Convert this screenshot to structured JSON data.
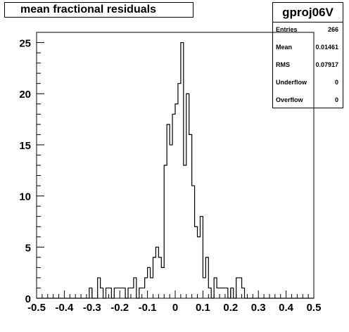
{
  "chart_data": {
    "type": "bar",
    "title": "mean fractional residuals",
    "xlim": [
      -0.5,
      0.5
    ],
    "ylim": [
      0,
      26
    ],
    "bin_width": 0.01,
    "x_ticks": [
      "-0.5",
      "-0.4",
      "-0.3",
      "-0.2",
      "-0.1",
      "0",
      "0.1",
      "0.2",
      "0.3",
      "0.4",
      "0.5"
    ],
    "x_tick_values": [
      -0.5,
      -0.4,
      -0.3,
      -0.2,
      -0.1,
      0,
      0.1,
      0.2,
      0.3,
      0.4,
      0.5
    ],
    "y_ticks": [
      "0",
      "5",
      "10",
      "15",
      "20",
      "25"
    ],
    "y_tick_values": [
      0,
      5,
      10,
      15,
      20,
      25
    ],
    "bins": [
      [
        -0.31,
        1
      ],
      [
        -0.28,
        2
      ],
      [
        -0.27,
        1
      ],
      [
        -0.25,
        1
      ],
      [
        -0.24,
        1
      ],
      [
        -0.22,
        1
      ],
      [
        -0.21,
        1
      ],
      [
        -0.2,
        1
      ],
      [
        -0.19,
        1
      ],
      [
        -0.17,
        1
      ],
      [
        -0.16,
        1
      ],
      [
        -0.15,
        2
      ],
      [
        -0.13,
        1
      ],
      [
        -0.12,
        1
      ],
      [
        -0.11,
        2
      ],
      [
        -0.1,
        3
      ],
      [
        -0.09,
        2
      ],
      [
        -0.08,
        4
      ],
      [
        -0.07,
        5
      ],
      [
        -0.06,
        4
      ],
      [
        -0.05,
        3
      ],
      [
        -0.04,
        13
      ],
      [
        -0.03,
        17
      ],
      [
        -0.02,
        15
      ],
      [
        -0.01,
        18
      ],
      [
        0.0,
        19
      ],
      [
        0.01,
        21
      ],
      [
        0.02,
        25
      ],
      [
        0.03,
        13
      ],
      [
        0.04,
        20
      ],
      [
        0.05,
        16
      ],
      [
        0.06,
        11
      ],
      [
        0.07,
        7
      ],
      [
        0.08,
        6
      ],
      [
        0.09,
        8
      ],
      [
        0.1,
        2
      ],
      [
        0.11,
        4
      ],
      [
        0.12,
        1
      ],
      [
        0.13,
        0
      ],
      [
        0.14,
        2
      ],
      [
        0.15,
        1
      ],
      [
        0.16,
        1
      ],
      [
        0.17,
        1
      ],
      [
        0.18,
        1
      ],
      [
        0.19,
        0
      ],
      [
        0.2,
        1
      ],
      [
        0.21,
        0
      ],
      [
        0.22,
        2
      ],
      [
        0.23,
        2
      ],
      [
        0.24,
        1
      ]
    ],
    "stats_title": "gproj06V",
    "stats": [
      {
        "label": "Entries",
        "value": "266"
      },
      {
        "label": "Mean",
        "value": "0.01461"
      },
      {
        "label": "RMS",
        "value": "0.07917"
      },
      {
        "label": "Underflow",
        "value": "0"
      },
      {
        "label": "Overflow",
        "value": "0"
      }
    ]
  }
}
